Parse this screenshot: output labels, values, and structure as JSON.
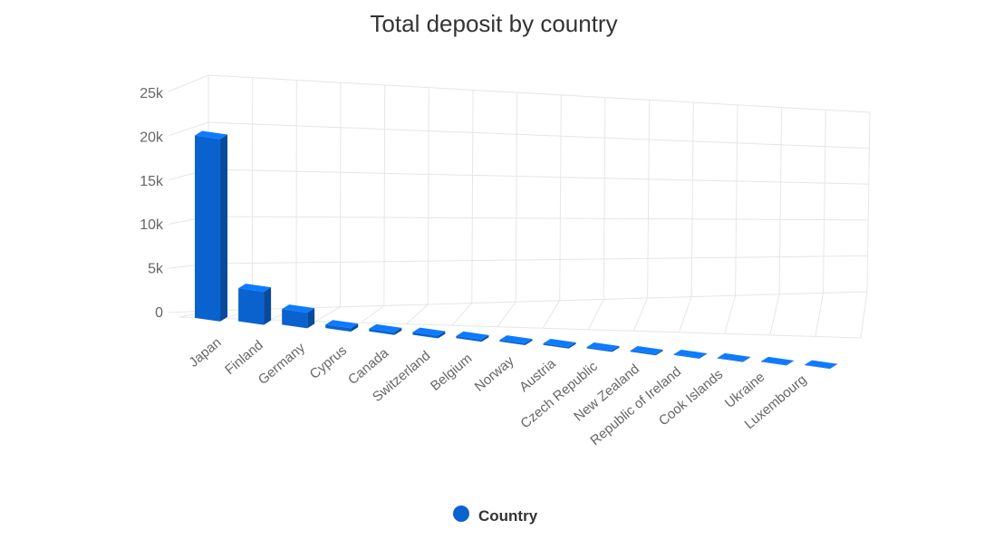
{
  "chart_data": {
    "type": "bar",
    "title": "Total deposit by country",
    "categories": [
      "Japan",
      "Finland",
      "Germany",
      "Cyprus",
      "Canada",
      "Switzerland",
      "Belgium",
      "Norway",
      "Austria",
      "Czech Republic",
      "New Zealand",
      "Republic of Ireland",
      "Cook Islands",
      "Ukraine",
      "Luxembourg"
    ],
    "series": [
      {
        "name": "Country",
        "color": "#0a62cf",
        "values": [
          21000,
          3800,
          1800,
          400,
          300,
          300,
          250,
          200,
          180,
          150,
          120,
          100,
          80,
          60,
          50
        ]
      }
    ],
    "yticks": [
      "0",
      "5k",
      "10k",
      "15k",
      "20k",
      "25k"
    ],
    "ylim": [
      0,
      25000
    ],
    "grid": true,
    "legend": "bottom-center",
    "three_d": true
  }
}
